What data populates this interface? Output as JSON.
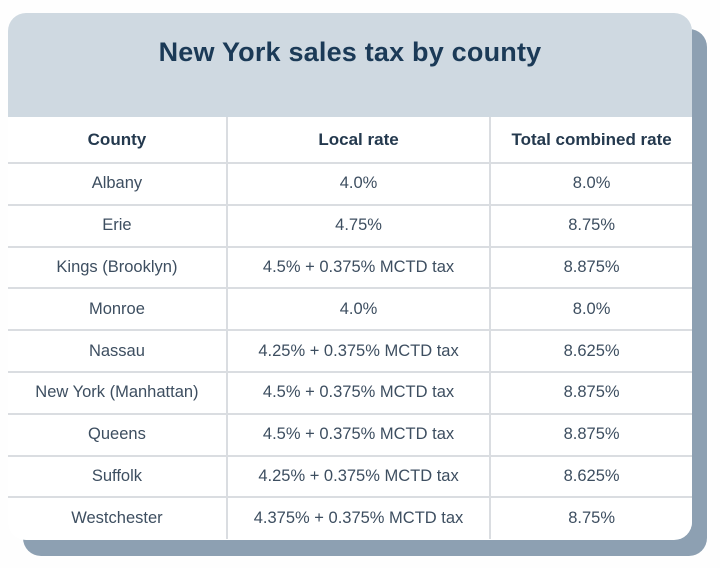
{
  "colors": {
    "header_band": "#cfd9e1",
    "title_text": "#1b3a57",
    "header_text": "#24394e",
    "body_text": "#3d4e60",
    "border": "#dadde1",
    "shadow": "#8da0b2",
    "row_bg": "#ffffff",
    "page_bg": "#fefefe"
  },
  "chart_data": {
    "type": "table",
    "title": "New York sales tax by county",
    "columns": [
      "County",
      "Local rate",
      "Total combined rate"
    ],
    "rows": [
      [
        "Albany",
        "4.0%",
        "8.0%"
      ],
      [
        "Erie",
        "4.75%",
        "8.75%"
      ],
      [
        "Kings (Brooklyn)",
        "4.5% + 0.375% MCTD tax",
        "8.875%"
      ],
      [
        "Monroe",
        "4.0%",
        "8.0%"
      ],
      [
        "Nassau",
        "4.25% + 0.375% MCTD tax",
        "8.625%"
      ],
      [
        "New York (Manhattan)",
        "4.5% + 0.375% MCTD tax",
        "8.875%"
      ],
      [
        "Queens",
        "4.5% + 0.375% MCTD tax",
        "8.875%"
      ],
      [
        "Suffolk",
        "4.25% + 0.375% MCTD tax",
        "8.625%"
      ],
      [
        "Westchester",
        "4.375% + 0.375% MCTD tax",
        "8.75%"
      ]
    ]
  }
}
